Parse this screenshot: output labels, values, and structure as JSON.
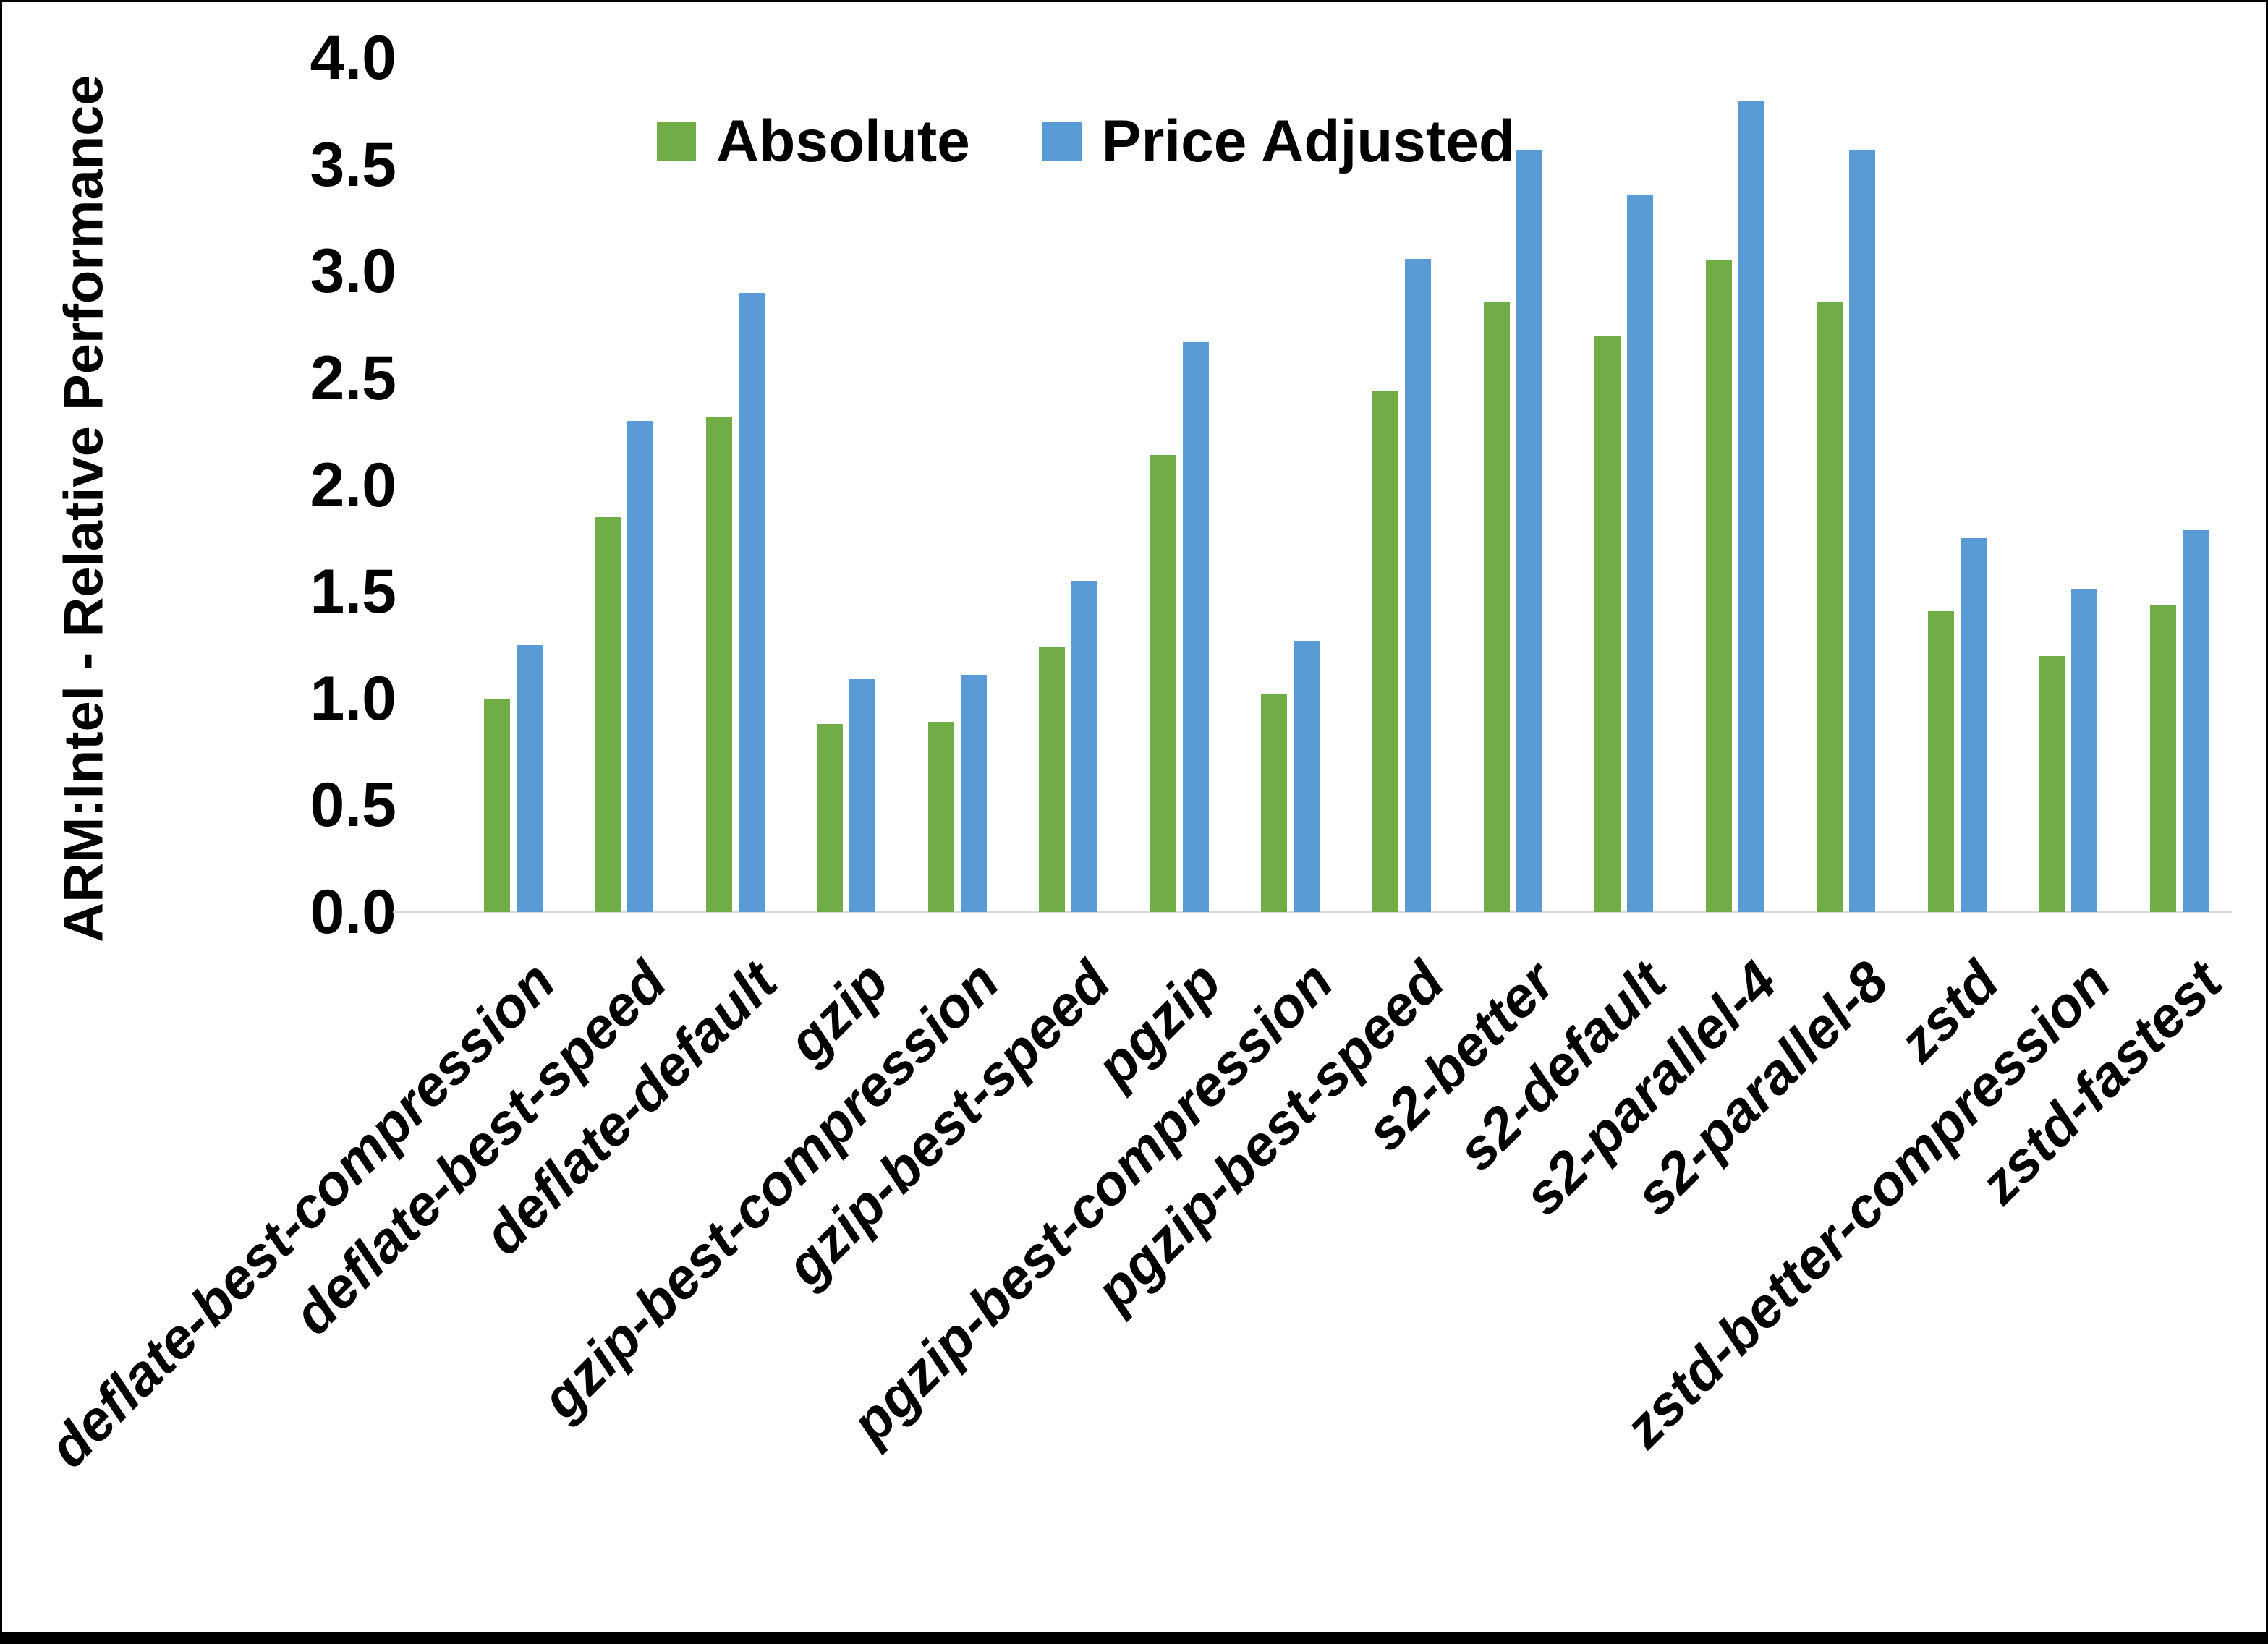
{
  "chart_data": {
    "type": "bar",
    "title": "",
    "ylabel": "ARM:Intel - Relative Performance",
    "xlabel": "",
    "ylim": [
      0.0,
      4.0
    ],
    "ytick_step": 0.5,
    "y_ticks": [
      "0.0",
      "0.5",
      "1.0",
      "1.5",
      "2.0",
      "2.5",
      "3.0",
      "3.5",
      "4.0"
    ],
    "grid": false,
    "legend_position": "top-center",
    "categories": [
      "deflate-best-compression",
      "deflate-best-speed",
      "deflate-default",
      "gzip",
      "gzip-best-compression",
      "gzip-best-speed",
      "pgzip",
      "pgzip-best-compression",
      "pgzip-best-speed",
      "s2-better",
      "s2-default",
      "s2-parallel-4",
      "s2-parallel-8",
      "zstd",
      "zstd-better-compression",
      "zstd-fastest"
    ],
    "series": [
      {
        "name": "Absolute",
        "color": "#70AD47",
        "values": [
          1.0,
          1.85,
          2.32,
          0.88,
          0.89,
          1.24,
          2.14,
          1.02,
          2.44,
          2.86,
          2.7,
          3.05,
          2.86,
          1.41,
          1.2,
          1.44
        ]
      },
      {
        "name": "Price Adjusted",
        "color": "#5B9BD5",
        "values": [
          1.25,
          2.3,
          2.9,
          1.09,
          1.11,
          1.55,
          2.67,
          1.27,
          3.06,
          3.57,
          3.36,
          3.8,
          3.57,
          1.75,
          1.51,
          1.79
        ]
      }
    ]
  },
  "colors": {
    "axis_line": "#D9D9D9",
    "text": "#000000",
    "background": "#FFFFFF",
    "frame_border": "#000000"
  }
}
